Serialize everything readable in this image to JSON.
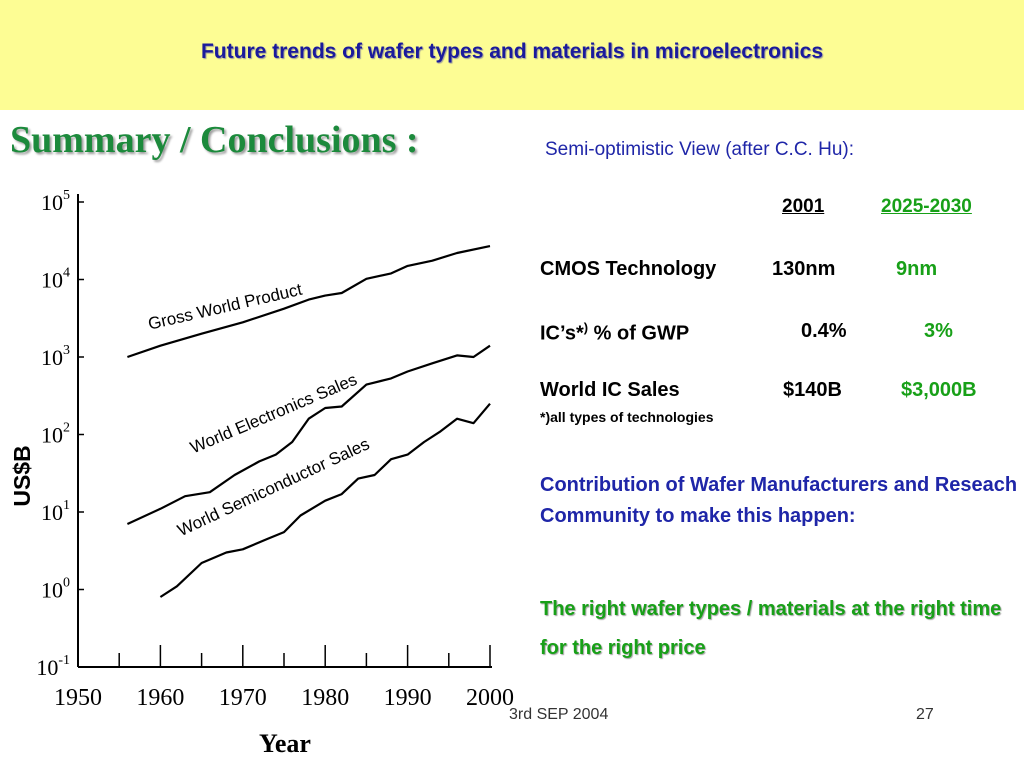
{
  "banner": {
    "title": "Future trends of wafer types and materials in microelectronics"
  },
  "heading": "Summary / Conclusions :",
  "view_title": "Semi-optimistic View (after C.C. Hu):",
  "table": {
    "col_2001": "2001",
    "col_future": "2025-2030",
    "rows": [
      {
        "label": "CMOS Technology",
        "label_sup": "",
        "label_tail": "",
        "v2001": "130nm",
        "vfuture": "9nm"
      },
      {
        "label": "IC’s*",
        "label_sup": ")",
        "label_tail": " % of GWP",
        "v2001": "0.4%",
        "vfuture": "3%"
      },
      {
        "label": "World IC Sales",
        "label_sup": "",
        "label_tail": "",
        "v2001": "$140B",
        "vfuture": "$3,000B"
      }
    ],
    "footnote": "*)all types of technologies"
  },
  "contribution": "Contribution of Wafer Manufacturers and Reseach Community  to make this happen:",
  "conclusion": "The right wafer types / materials at the right time for the right price",
  "footer": {
    "date": "3rd SEP 2004",
    "page": "27"
  },
  "colors": {
    "banner": "#fdfd94",
    "title": "#1a1a9c",
    "heading": "#1c8a3c",
    "blue_text": "#1f26a8",
    "green_text": "#18a018"
  },
  "chart_data": {
    "type": "line",
    "title": "",
    "xlabel": "Year",
    "ylabel": "US$B",
    "xlim": [
      1950,
      2000
    ],
    "ylim": [
      0.1,
      100000
    ],
    "yscale": "log",
    "x_ticks": [
      "1950",
      "1960",
      "1970",
      "1980",
      "1990",
      "2000"
    ],
    "y_ticks": [
      {
        "base": "10",
        "exp": "5",
        "value": 100000
      },
      {
        "base": "10",
        "exp": "4",
        "value": 10000
      },
      {
        "base": "10",
        "exp": "3",
        "value": 1000
      },
      {
        "base": "10",
        "exp": "2",
        "value": 100
      },
      {
        "base": "10",
        "exp": "1",
        "value": 10
      },
      {
        "base": "10",
        "exp": "0",
        "value": 1
      },
      {
        "base": "10",
        "exp": "-1",
        "value": 0.1
      }
    ],
    "grid": false,
    "series": [
      {
        "name": "Gross World Product",
        "x": [
          1956,
          1960,
          1965,
          1970,
          1975,
          1978,
          1980,
          1982,
          1985,
          1988,
          1990,
          1993,
          1996,
          2000
        ],
        "y": [
          1000,
          1400,
          2000,
          2800,
          4200,
          5500,
          6200,
          6700,
          10200,
          12000,
          15000,
          17500,
          22000,
          27000
        ]
      },
      {
        "name": "World Electronics Sales",
        "x": [
          1956,
          1960,
          1963,
          1966,
          1969,
          1972,
          1974,
          1976,
          1978,
          1980,
          1982,
          1985,
          1988,
          1990,
          1993,
          1996,
          1998,
          2000
        ],
        "y": [
          7,
          11,
          16,
          18,
          30,
          45,
          55,
          80,
          160,
          220,
          230,
          440,
          530,
          650,
          830,
          1050,
          1000,
          1400
        ]
      },
      {
        "name": "World Semiconductor Sales",
        "x": [
          1960,
          1962,
          1965,
          1968,
          1970,
          1973,
          1975,
          1977,
          1980,
          1982,
          1984,
          1986,
          1988,
          1990,
          1992,
          1994,
          1996,
          1998,
          2000
        ],
        "y": [
          0.8,
          1.1,
          2.2,
          3.0,
          3.3,
          4.5,
          5.5,
          9.0,
          14,
          17,
          27,
          30,
          48,
          55,
          80,
          110,
          160,
          140,
          250
        ]
      }
    ]
  }
}
